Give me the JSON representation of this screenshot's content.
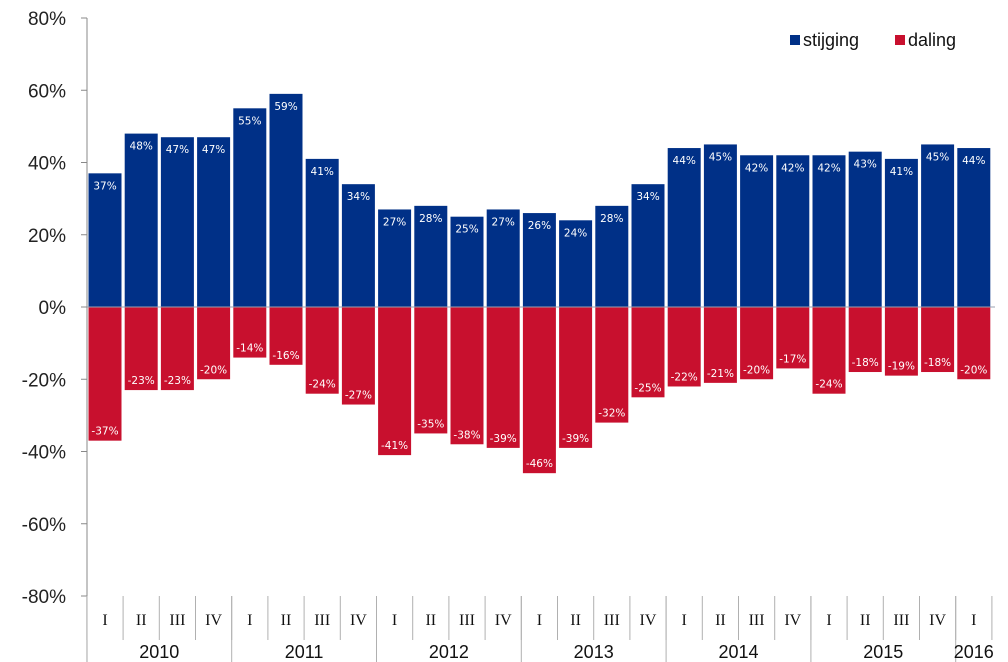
{
  "chart_data": {
    "type": "bar",
    "title": "",
    "xlabel": "",
    "ylabel": "",
    "ylim": [
      -80,
      80
    ],
    "y_ticks": [
      "-80%",
      "-60%",
      "-40%",
      "-20%",
      "0%",
      "20%",
      "40%",
      "60%",
      "80%"
    ],
    "legend_position": "top-right",
    "grid": false,
    "categories": [
      "I",
      "II",
      "III",
      "IV",
      "I",
      "II",
      "III",
      "IV",
      "I",
      "II",
      "III",
      "IV",
      "I",
      "II",
      "III",
      "IV",
      "I",
      "II",
      "III",
      "IV",
      "I",
      "II",
      "III",
      "IV",
      "I"
    ],
    "years": [
      {
        "label": "2010",
        "count": 4
      },
      {
        "label": "2011",
        "count": 4
      },
      {
        "label": "2012",
        "count": 4
      },
      {
        "label": "2013",
        "count": 4
      },
      {
        "label": "2014",
        "count": 4
      },
      {
        "label": "2015",
        "count": 4
      },
      {
        "label": "2016",
        "count": 1
      }
    ],
    "series": [
      {
        "name": "stijging",
        "color": "#003087",
        "values": [
          37,
          48,
          47,
          47,
          55,
          59,
          41,
          34,
          27,
          28,
          25,
          27,
          26,
          24,
          28,
          34,
          44,
          45,
          42,
          42,
          42,
          43,
          41,
          45,
          44
        ],
        "labels": [
          "37%",
          "48%",
          "47%",
          "47%",
          "55%",
          "59%",
          "41%",
          "34%",
          "27%",
          "28%",
          "25%",
          "27%",
          "26%",
          "24%",
          "28%",
          "34%",
          "44%",
          "45%",
          "42%",
          "42%",
          "42%",
          "43%",
          "41%",
          "45%",
          "44%"
        ]
      },
      {
        "name": "daling",
        "color": "#c8102e",
        "values": [
          -37,
          -23,
          -23,
          -20,
          -14,
          -16,
          -24,
          -27,
          -41,
          -35,
          -38,
          -39,
          -46,
          -39,
          -32,
          -25,
          -22,
          -21,
          -20,
          -17,
          -24,
          -18,
          -19,
          -18,
          -20
        ],
        "labels": [
          "-37%",
          "-23%",
          "-23%",
          "-20%",
          "-14%",
          "-16%",
          "-24%",
          "-27%",
          "-41%",
          "-35%",
          "-38%",
          "-39%",
          "-46%",
          "-39%",
          "-32%",
          "-25%",
          "-22%",
          "-21%",
          "-20%",
          "-17%",
          "-24%",
          "-18%",
          "-19%",
          "-18%",
          "-20%"
        ]
      }
    ]
  }
}
